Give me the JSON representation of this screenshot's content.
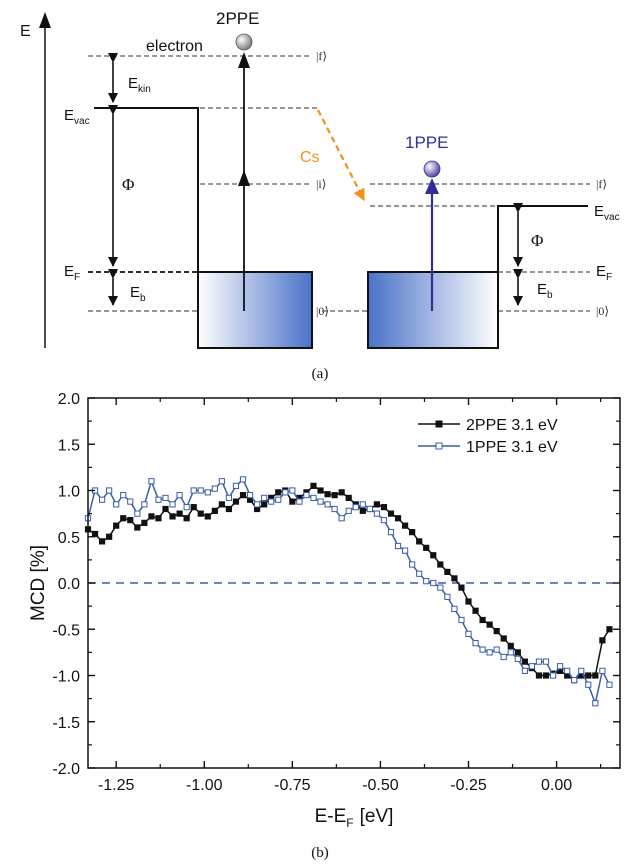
{
  "panel_a": {
    "label": "(a)",
    "energy_axis": "E",
    "title_2ppe": "2PPE",
    "title_1ppe": "1PPE",
    "electron": "electron",
    "cs": "Cs",
    "e_kin_main": "E",
    "e_kin_sub": "kin",
    "e_vac_main": "E",
    "e_vac_sub": "vac",
    "phi": "Φ",
    "e_f_main": "E",
    "e_f_sub": "F",
    "e_b_main": "E",
    "e_b_sub": "b",
    "ket_f": "|f⟩",
    "ket_i": "|i⟩",
    "ket_0": "|0⟩",
    "colors": {
      "blue": "#2f2f96",
      "orange": "#f39019",
      "well": "#4a72c8"
    }
  },
  "panel_b": {
    "label": "(b)"
  },
  "chart_data": {
    "type": "line",
    "xlabel": "E-E",
    "xlabel_sub": "F",
    "xlabel_unit": "[eV]",
    "ylabel": "MCD [%]",
    "xlim": [
      -1.33,
      0.18
    ],
    "ylim": [
      -2.0,
      2.0
    ],
    "xticks": [
      -1.25,
      -1.0,
      -0.75,
      -0.5,
      -0.25,
      0.0
    ],
    "xtick_labels": [
      "-1.25",
      "-1.00",
      "-0.75",
      "-0.50",
      "-0.25",
      "0.00"
    ],
    "yticks": [
      -2.0,
      -1.5,
      -1.0,
      -0.5,
      0.0,
      0.5,
      1.0,
      1.5,
      2.0
    ],
    "ytick_labels": [
      "-2.0",
      "-1.5",
      "-1.0",
      "-0.5",
      "0.0",
      "0.5",
      "1.0",
      "1.5",
      "2.0"
    ],
    "reference_line": 0.0,
    "legend_position": "top-right",
    "series": [
      {
        "name": "2PPE 3.1 eV",
        "color": "#111111",
        "marker": "filled-square",
        "x": [
          -1.33,
          -1.31,
          -1.29,
          -1.27,
          -1.25,
          -1.23,
          -1.21,
          -1.19,
          -1.17,
          -1.15,
          -1.13,
          -1.11,
          -1.09,
          -1.07,
          -1.05,
          -1.03,
          -1.01,
          -0.99,
          -0.97,
          -0.95,
          -0.93,
          -0.91,
          -0.89,
          -0.87,
          -0.85,
          -0.83,
          -0.81,
          -0.79,
          -0.77,
          -0.75,
          -0.73,
          -0.71,
          -0.69,
          -0.67,
          -0.65,
          -0.63,
          -0.61,
          -0.59,
          -0.57,
          -0.55,
          -0.53,
          -0.51,
          -0.49,
          -0.47,
          -0.45,
          -0.43,
          -0.41,
          -0.39,
          -0.37,
          -0.35,
          -0.33,
          -0.31,
          -0.29,
          -0.27,
          -0.25,
          -0.23,
          -0.21,
          -0.19,
          -0.17,
          -0.15,
          -0.13,
          -0.11,
          -0.09,
          -0.07,
          -0.05,
          -0.03,
          -0.01,
          0.01,
          0.03,
          0.05,
          0.07,
          0.09,
          0.11,
          0.13,
          0.15
        ],
        "y": [
          0.58,
          0.53,
          0.45,
          0.5,
          0.62,
          0.7,
          0.68,
          0.6,
          0.65,
          0.72,
          0.7,
          0.8,
          0.72,
          0.75,
          0.7,
          0.82,
          0.75,
          0.72,
          0.78,
          0.85,
          0.8,
          0.88,
          0.95,
          0.9,
          0.8,
          0.85,
          0.92,
          0.98,
          1.0,
          0.88,
          0.92,
          0.98,
          1.05,
          1.0,
          0.96,
          0.95,
          0.98,
          0.92,
          0.85,
          0.78,
          0.8,
          0.85,
          0.82,
          0.75,
          0.7,
          0.62,
          0.55,
          0.45,
          0.38,
          0.3,
          0.2,
          0.12,
          0.05,
          -0.05,
          -0.2,
          -0.3,
          -0.4,
          -0.45,
          -0.52,
          -0.6,
          -0.68,
          -0.75,
          -0.85,
          -0.92,
          -1.0,
          -1.0,
          -0.98,
          -0.95,
          -1.0,
          -1.05,
          -1.0,
          -1.0,
          -1.0,
          -0.62,
          -0.5
        ]
      },
      {
        "name": "1PPE 3.1 eV",
        "color": "#3a5ea8",
        "marker": "open-square",
        "x": [
          -1.33,
          -1.31,
          -1.29,
          -1.27,
          -1.25,
          -1.23,
          -1.21,
          -1.19,
          -1.17,
          -1.15,
          -1.13,
          -1.11,
          -1.09,
          -1.07,
          -1.05,
          -1.03,
          -1.01,
          -0.99,
          -0.97,
          -0.95,
          -0.93,
          -0.91,
          -0.89,
          -0.87,
          -0.85,
          -0.83,
          -0.81,
          -0.79,
          -0.77,
          -0.75,
          -0.73,
          -0.71,
          -0.69,
          -0.67,
          -0.65,
          -0.63,
          -0.61,
          -0.59,
          -0.57,
          -0.55,
          -0.53,
          -0.51,
          -0.49,
          -0.47,
          -0.45,
          -0.43,
          -0.41,
          -0.39,
          -0.37,
          -0.35,
          -0.33,
          -0.31,
          -0.29,
          -0.27,
          -0.25,
          -0.23,
          -0.21,
          -0.19,
          -0.17,
          -0.15,
          -0.13,
          -0.11,
          -0.09,
          -0.07,
          -0.05,
          -0.03,
          -0.01,
          0.01,
          0.03,
          0.05,
          0.07,
          0.09,
          0.11,
          0.13,
          0.15
        ],
        "y": [
          0.7,
          1.0,
          0.9,
          1.0,
          0.85,
          0.95,
          0.88,
          0.75,
          0.85,
          1.1,
          0.9,
          0.92,
          0.85,
          0.95,
          0.82,
          1.0,
          1.0,
          0.98,
          1.02,
          1.1,
          0.92,
          1.05,
          1.12,
          0.95,
          0.85,
          0.92,
          0.88,
          0.9,
          0.98,
          1.0,
          0.88,
          0.95,
          0.92,
          0.88,
          0.85,
          0.8,
          0.7,
          0.78,
          0.82,
          0.85,
          0.8,
          0.75,
          0.68,
          0.55,
          0.4,
          0.35,
          0.2,
          0.1,
          0.02,
          0.0,
          -0.05,
          -0.15,
          -0.28,
          -0.4,
          -0.55,
          -0.65,
          -0.72,
          -0.75,
          -0.72,
          -0.8,
          -0.75,
          -0.82,
          -0.95,
          -0.9,
          -0.85,
          -0.85,
          -1.0,
          -0.9,
          -0.95,
          -1.05,
          -0.95,
          -1.1,
          -1.3,
          -0.95,
          -1.1
        ]
      }
    ]
  }
}
